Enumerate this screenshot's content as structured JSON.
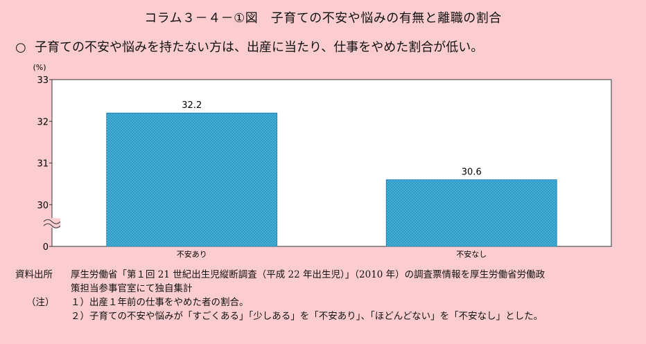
{
  "title": "コラム３－４－①図　子育ての不安や悩みの有無と離職の割合",
  "subtitle": {
    "marker": "○",
    "text": "子育ての不安や悩みを持たない方は、出産に当たり、仕事をやめた割合が低い。"
  },
  "chart_data": {
    "type": "bar",
    "ylabel": "(%)",
    "categories": [
      "不安あり",
      "不安なし"
    ],
    "values": [
      32.2,
      30.6
    ],
    "data_labels": [
      "32.2",
      "30.6"
    ],
    "yticks": [
      "0",
      "30",
      "31",
      "32",
      "33"
    ],
    "ylim": [
      29,
      33
    ],
    "axis_break": true,
    "grid": false,
    "bar_color": "#2a9bc8",
    "plot_background": "#ffffff"
  },
  "notes": {
    "source_label": "資料出所",
    "source_line1": "厚生労働省「第１回 21 世紀出生児縦断調査（平成 22 年出生児）」（2010 年）の調査票情報を厚生労働省労働政",
    "source_line2": "策担当参事官室にて独自集計",
    "note_label": "（注）",
    "note1": "１）出産１年前の仕事をやめた者の割合。",
    "note2": "２）子育ての不安や悩みが「すごくある」「少しある」を「不安あり」、「ほどんどない」を「不安なし」とした。"
  }
}
